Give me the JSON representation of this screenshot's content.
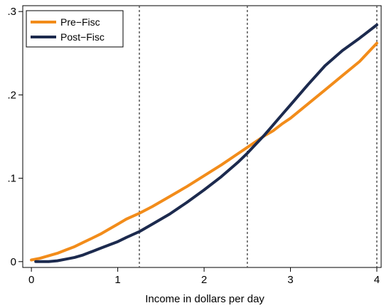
{
  "chart_data": {
    "type": "line",
    "title": "",
    "xlabel": "Income in dollars per day",
    "ylabel": "",
    "xlim": [
      -0.1,
      4.05
    ],
    "ylim": [
      -0.007,
      0.307
    ],
    "x_ticks": [
      0,
      1,
      2,
      3,
      4
    ],
    "x_tick_labels": [
      "0",
      "1",
      "2",
      "3",
      "4"
    ],
    "y_ticks": [
      0,
      0.1,
      0.2,
      0.3
    ],
    "y_tick_labels": [
      "0",
      ".1",
      ".2",
      ".3"
    ],
    "vlines": [
      1.25,
      2.5,
      4.0
    ],
    "grid": false,
    "legend_position": "top-left",
    "series": [
      {
        "name": "Pre−Fisc",
        "color": "#f28c1a",
        "x": [
          0.0,
          0.1,
          0.2,
          0.3,
          0.4,
          0.5,
          0.6,
          0.7,
          0.8,
          0.9,
          1.0,
          1.1,
          1.25,
          1.4,
          1.6,
          1.8,
          2.0,
          2.2,
          2.4,
          2.5,
          2.6,
          2.7,
          2.8,
          2.9,
          3.0,
          3.2,
          3.4,
          3.6,
          3.8,
          4.0
        ],
        "y": [
          0.002,
          0.004,
          0.007,
          0.01,
          0.014,
          0.018,
          0.023,
          0.028,
          0.033,
          0.039,
          0.045,
          0.051,
          0.058,
          0.066,
          0.078,
          0.09,
          0.103,
          0.116,
          0.13,
          0.137,
          0.144,
          0.151,
          0.157,
          0.165,
          0.172,
          0.189,
          0.206,
          0.223,
          0.24,
          0.262
        ]
      },
      {
        "name": "Post−Fisc",
        "color": "#1c2a4e",
        "x": [
          0.05,
          0.2,
          0.3,
          0.4,
          0.5,
          0.6,
          0.7,
          0.8,
          0.9,
          1.0,
          1.1,
          1.25,
          1.4,
          1.6,
          1.8,
          2.0,
          2.2,
          2.4,
          2.5,
          2.6,
          2.7,
          2.8,
          2.9,
          3.0,
          3.2,
          3.4,
          3.6,
          3.8,
          4.0
        ],
        "y": [
          0.0,
          0.0,
          0.001,
          0.003,
          0.005,
          0.008,
          0.012,
          0.016,
          0.02,
          0.024,
          0.029,
          0.036,
          0.045,
          0.057,
          0.071,
          0.086,
          0.102,
          0.12,
          0.13,
          0.141,
          0.152,
          0.164,
          0.176,
          0.188,
          0.212,
          0.235,
          0.253,
          0.268,
          0.284
        ]
      }
    ]
  }
}
